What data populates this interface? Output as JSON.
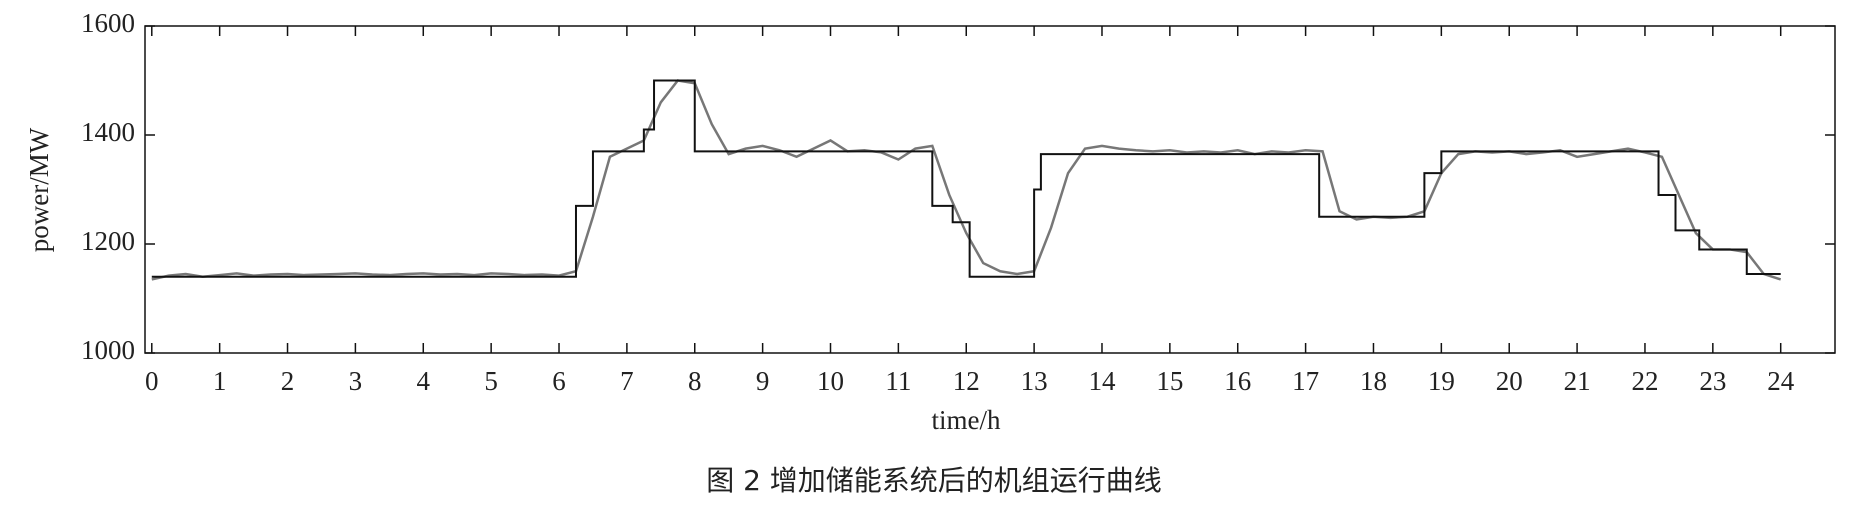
{
  "chart_data": {
    "type": "line",
    "xlabel": "time/h",
    "ylabel": "power/MW",
    "caption": "图 2   增加储能系统后的机组运行曲线",
    "xlim": [
      -0.1,
      24.8
    ],
    "ylim": [
      1000,
      1600
    ],
    "xticks": [
      0,
      1,
      2,
      3,
      4,
      5,
      6,
      7,
      8,
      9,
      10,
      11,
      12,
      13,
      14,
      15,
      16,
      17,
      18,
      19,
      20,
      21,
      22,
      23,
      24
    ],
    "yticks": [
      1000,
      1200,
      1400,
      1600
    ],
    "series": [
      {
        "color": "#111111",
        "x": [
          0,
          6.25,
          6.25,
          6.5,
          6.5,
          7.25,
          7.25,
          7.4,
          7.4,
          8.0,
          8.0,
          11.5,
          11.5,
          11.8,
          11.8,
          12.05,
          12.05,
          13.0,
          13.0,
          13.1,
          13.1,
          17.2,
          17.2,
          18.75,
          18.75,
          19.0,
          19.0,
          22.2,
          22.2,
          22.45,
          22.45,
          22.8,
          22.8,
          23.5,
          23.5,
          24.0
        ],
        "values": [
          1140,
          1140,
          1270,
          1270,
          1370,
          1370,
          1410,
          1410,
          1500,
          1500,
          1370,
          1370,
          1270,
          1270,
          1240,
          1240,
          1140,
          1140,
          1300,
          1300,
          1365,
          1365,
          1250,
          1250,
          1330,
          1330,
          1370,
          1370,
          1290,
          1290,
          1225,
          1225,
          1190,
          1190,
          1145,
          1145
        ]
      },
      {
        "color": "#777777",
        "x": [
          0,
          0.25,
          0.5,
          0.75,
          1,
          1.25,
          1.5,
          1.75,
          2,
          2.25,
          2.5,
          2.75,
          3,
          3.25,
          3.5,
          3.75,
          4,
          4.25,
          4.5,
          4.75,
          5,
          5.25,
          5.5,
          5.75,
          6,
          6.25,
          6.5,
          6.75,
          7,
          7.25,
          7.5,
          7.75,
          8,
          8.25,
          8.5,
          8.75,
          9,
          9.25,
          9.5,
          9.75,
          10,
          10.25,
          10.5,
          10.75,
          11,
          11.25,
          11.5,
          11.75,
          12,
          12.25,
          12.5,
          12.75,
          13,
          13.25,
          13.5,
          13.75,
          14,
          14.25,
          14.5,
          14.75,
          15,
          15.25,
          15.5,
          15.75,
          16,
          16.25,
          16.5,
          16.75,
          17,
          17.25,
          17.5,
          17.75,
          18,
          18.25,
          18.5,
          18.75,
          19,
          19.25,
          19.5,
          19.75,
          20,
          20.25,
          20.5,
          20.75,
          21,
          21.25,
          21.5,
          21.75,
          22,
          22.25,
          22.5,
          22.75,
          23,
          23.25,
          23.5,
          23.75,
          24
        ],
        "values": [
          1135,
          1142,
          1145,
          1140,
          1143,
          1146,
          1142,
          1144,
          1145,
          1143,
          1144,
          1145,
          1146,
          1144,
          1143,
          1145,
          1146,
          1144,
          1145,
          1143,
          1146,
          1145,
          1143,
          1144,
          1142,
          1150,
          1250,
          1360,
          1375,
          1390,
          1460,
          1500,
          1495,
          1420,
          1365,
          1375,
          1380,
          1372,
          1360,
          1375,
          1390,
          1370,
          1372,
          1368,
          1355,
          1375,
          1380,
          1290,
          1220,
          1165,
          1150,
          1145,
          1150,
          1230,
          1330,
          1375,
          1380,
          1375,
          1372,
          1370,
          1372,
          1368,
          1370,
          1368,
          1372,
          1365,
          1370,
          1368,
          1372,
          1370,
          1260,
          1245,
          1250,
          1248,
          1250,
          1260,
          1330,
          1365,
          1370,
          1368,
          1370,
          1365,
          1368,
          1372,
          1360,
          1365,
          1370,
          1375,
          1368,
          1360,
          1290,
          1220,
          1190,
          1190,
          1185,
          1145,
          1135
        ]
      }
    ]
  }
}
